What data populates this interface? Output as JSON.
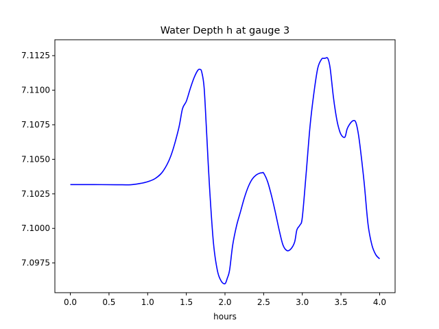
{
  "chart_data": {
    "type": "line",
    "title": "Water Depth h at gauge 3",
    "xlabel": "hours",
    "ylabel": "",
    "xlim": [
      -0.2,
      4.2
    ],
    "ylim": [
      7.09535,
      7.11365
    ],
    "xticks": [
      0.0,
      0.5,
      1.0,
      1.5,
      2.0,
      2.5,
      3.0,
      3.5,
      4.0
    ],
    "xtick_labels": [
      "0.0",
      "0.5",
      "1.0",
      "1.5",
      "2.0",
      "2.5",
      "3.0",
      "3.5",
      "4.0"
    ],
    "yticks": [
      7.0975,
      7.1,
      7.1025,
      7.105,
      7.1075,
      7.11,
      7.1125
    ],
    "ytick_labels": [
      "7.0975",
      "7.1000",
      "7.1025",
      "7.1050",
      "7.1075",
      "7.1100",
      "7.1125"
    ],
    "grid": false,
    "series": [
      {
        "color": "#0000ff",
        "x": [
          0.0,
          0.3,
          0.6,
          0.78,
          0.9,
          1.0,
          1.1,
          1.2,
          1.3,
          1.4,
          1.45,
          1.5,
          1.55,
          1.6,
          1.65,
          1.68,
          1.7,
          1.73,
          1.76,
          1.8,
          1.85,
          1.9,
          1.95,
          2.0,
          2.03,
          2.06,
          2.1,
          2.15,
          2.2,
          2.25,
          2.3,
          2.35,
          2.4,
          2.45,
          2.48,
          2.5,
          2.55,
          2.6,
          2.65,
          2.7,
          2.75,
          2.8,
          2.85,
          2.9,
          2.93,
          2.97,
          3.0,
          3.05,
          3.1,
          3.15,
          3.2,
          3.25,
          3.28,
          3.3,
          3.33,
          3.36,
          3.4,
          3.43,
          3.46,
          3.5,
          3.55,
          3.58,
          3.62,
          3.66,
          3.69,
          3.72,
          3.75,
          3.8,
          3.85,
          3.9,
          3.95,
          4.0
        ],
        "y": [
          7.10317,
          7.10317,
          7.10316,
          7.10316,
          7.10325,
          7.10338,
          7.10362,
          7.10415,
          7.10525,
          7.1072,
          7.10865,
          7.1092,
          7.1101,
          7.1109,
          7.11145,
          7.1115,
          7.1113,
          7.1102,
          7.1072,
          7.103,
          7.099,
          7.097,
          7.0962,
          7.096,
          7.0964,
          7.097,
          7.0988,
          7.1002,
          7.1012,
          7.1022,
          7.103,
          7.10355,
          7.10385,
          7.104,
          7.10402,
          7.104,
          7.1034,
          7.1024,
          7.1012,
          7.0999,
          7.0988,
          7.0984,
          7.0985,
          7.099,
          7.0999,
          7.10025,
          7.1008,
          7.104,
          7.1074,
          7.1098,
          7.1116,
          7.11225,
          7.1123,
          7.11232,
          7.1123,
          7.1116,
          7.1096,
          7.1084,
          7.1075,
          7.1068,
          7.1066,
          7.1072,
          7.1076,
          7.1078,
          7.1077,
          7.107,
          7.1058,
          7.1033,
          7.1003,
          7.0988,
          7.0981,
          7.0978
        ]
      }
    ]
  }
}
